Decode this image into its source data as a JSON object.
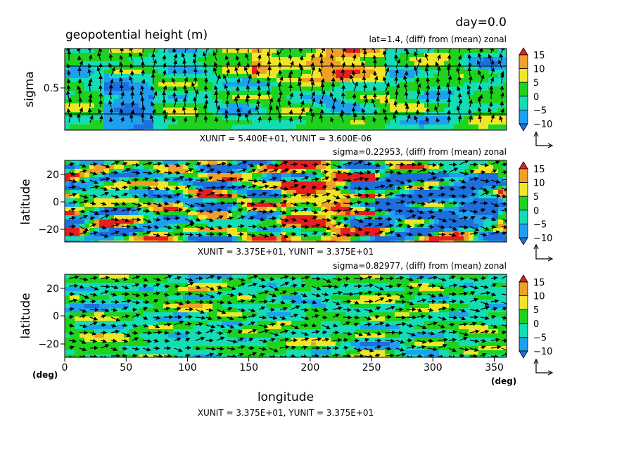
{
  "header": {
    "time_label": "day=0.0",
    "variable_title": "geopotential height (m)"
  },
  "colorbar": {
    "levels": [
      -10,
      -5,
      0,
      5,
      10,
      15
    ],
    "tick_labels": [
      "15",
      "10",
      "5",
      "0",
      "−5",
      "−10"
    ],
    "colors": [
      "#1e6edc",
      "#1ea0f0",
      "#14dcb4",
      "#1ed21e",
      "#f0e628",
      "#f0a028",
      "#e61e1e"
    ]
  },
  "chart_data": [
    {
      "type": "heatmap",
      "subtitle": "lat=1.4, (diff) from (mean) zonal",
      "ylabel": "sigma",
      "yticks": [
        "0.5"
      ],
      "xlim": [
        0,
        360
      ],
      "ylim": [
        0,
        1
      ],
      "vector_units": "XUNIT = 5.400E+01, YUNIT = 3.600E-06"
    },
    {
      "type": "heatmap",
      "subtitle": "sigma=0.22953, (diff) from (mean) zonal",
      "ylabel": "latitude",
      "yticks": [
        "20",
        "0",
        "−20"
      ],
      "xlim": [
        0,
        360
      ],
      "ylim": [
        -30,
        30
      ],
      "vector_units": "XUNIT = 3.375E+01, YUNIT = 3.375E+01"
    },
    {
      "type": "heatmap",
      "subtitle": "sigma=0.82977, (diff) from (mean) zonal",
      "ylabel": "latitude",
      "yticks": [
        "20",
        "0",
        "−20"
      ],
      "xlabel": "longitude",
      "xticks": [
        "0",
        "50",
        "100",
        "150",
        "200",
        "250",
        "300",
        "350"
      ],
      "x_unit_left": "(deg)",
      "x_unit_right": "(deg)",
      "xlim": [
        0,
        360
      ],
      "ylim": [
        -30,
        30
      ],
      "vector_units": "XUNIT = 3.375E+01, YUNIT = 3.375E+01"
    }
  ]
}
